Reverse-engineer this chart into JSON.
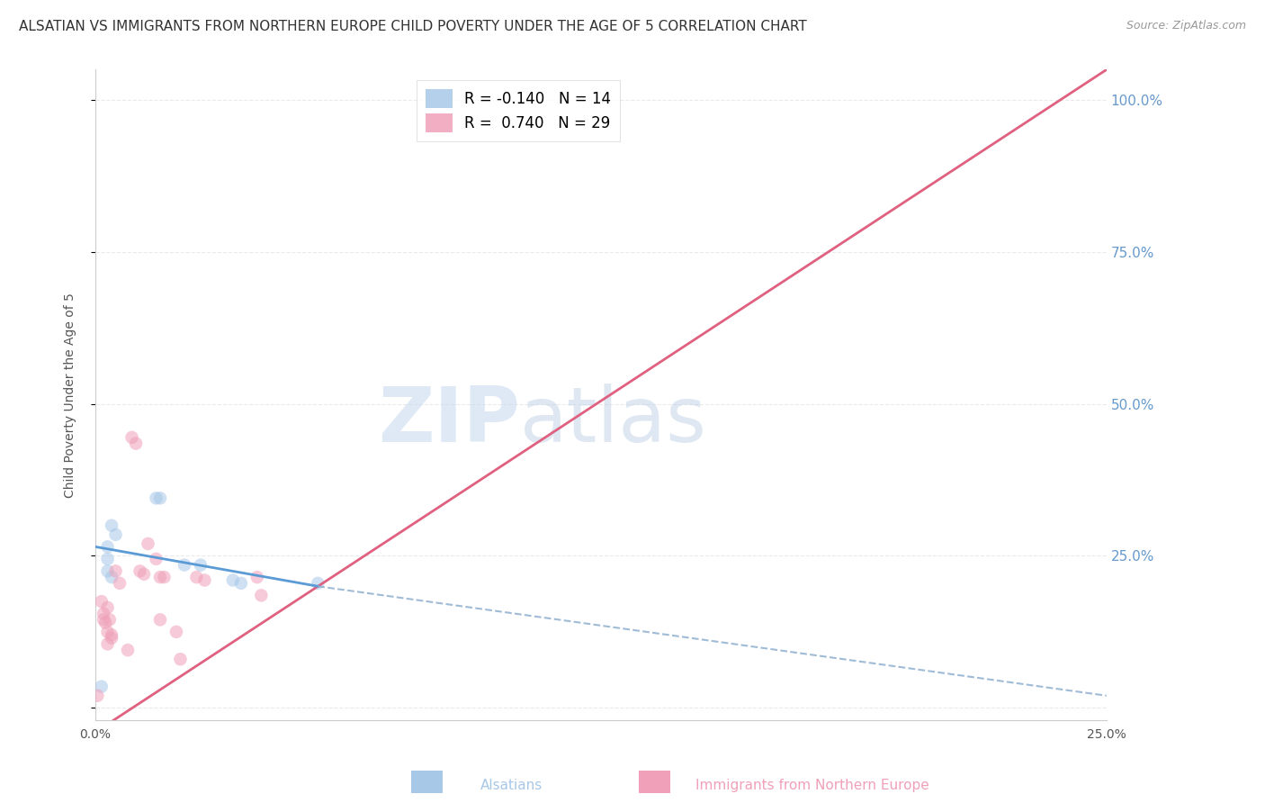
{
  "title": "ALSATIAN VS IMMIGRANTS FROM NORTHERN EUROPE CHILD POVERTY UNDER THE AGE OF 5 CORRELATION CHART",
  "source": "Source: ZipAtlas.com",
  "ylabel": "Child Poverty Under the Age of 5",
  "watermark_zip": "ZIP",
  "watermark_atlas": "atlas",
  "legend_label_1": "Alsatians",
  "legend_label_2": "Immigrants from Northern Europe",
  "R1": -0.14,
  "N1": 14,
  "R2": 0.74,
  "N2": 29,
  "xlim": [
    0.0,
    0.25
  ],
  "ylim": [
    -0.02,
    1.05
  ],
  "xticks": [
    0.0,
    0.05,
    0.1,
    0.15,
    0.2,
    0.25
  ],
  "xtick_labels": [
    "0.0%",
    "",
    "",
    "",
    "",
    "25.0%"
  ],
  "yticks": [
    0.0,
    0.25,
    0.5,
    0.75,
    1.0
  ],
  "ytick_labels_right": [
    "",
    "25.0%",
    "50.0%",
    "75.0%",
    "100.0%"
  ],
  "blue_color": "#A8C8E8",
  "pink_color": "#F0A0B8",
  "blue_line_color": "#5B9BD5",
  "pink_line_color": "#E06080",
  "dashed_line_color": "#88AACC",
  "blue_scatter": [
    [
      0.0015,
      0.035
    ],
    [
      0.003,
      0.265
    ],
    [
      0.003,
      0.245
    ],
    [
      0.003,
      0.225
    ],
    [
      0.004,
      0.215
    ],
    [
      0.004,
      0.3
    ],
    [
      0.005,
      0.285
    ],
    [
      0.015,
      0.345
    ],
    [
      0.016,
      0.345
    ],
    [
      0.022,
      0.235
    ],
    [
      0.026,
      0.235
    ],
    [
      0.034,
      0.21
    ],
    [
      0.036,
      0.205
    ],
    [
      0.055,
      0.205
    ]
  ],
  "pink_scatter": [
    [
      0.0005,
      0.02
    ],
    [
      0.0015,
      0.175
    ],
    [
      0.002,
      0.155
    ],
    [
      0.002,
      0.145
    ],
    [
      0.0025,
      0.14
    ],
    [
      0.003,
      0.125
    ],
    [
      0.003,
      0.105
    ],
    [
      0.003,
      0.165
    ],
    [
      0.0035,
      0.145
    ],
    [
      0.004,
      0.115
    ],
    [
      0.004,
      0.12
    ],
    [
      0.005,
      0.225
    ],
    [
      0.006,
      0.205
    ],
    [
      0.008,
      0.095
    ],
    [
      0.009,
      0.445
    ],
    [
      0.01,
      0.435
    ],
    [
      0.011,
      0.225
    ],
    [
      0.012,
      0.22
    ],
    [
      0.013,
      0.27
    ],
    [
      0.015,
      0.245
    ],
    [
      0.016,
      0.215
    ],
    [
      0.016,
      0.145
    ],
    [
      0.017,
      0.215
    ],
    [
      0.02,
      0.125
    ],
    [
      0.021,
      0.08
    ],
    [
      0.025,
      0.215
    ],
    [
      0.027,
      0.21
    ],
    [
      0.04,
      0.215
    ],
    [
      0.041,
      0.185
    ]
  ],
  "pink_line_x0": 0.0,
  "pink_line_y0": -0.04,
  "pink_line_x1": 0.25,
  "pink_line_y1": 1.05,
  "blue_line_x0": 0.0,
  "blue_line_y0": 0.265,
  "blue_line_x1": 0.055,
  "blue_line_y1": 0.2,
  "dashed_line_x0": 0.055,
  "dashed_line_y0": 0.2,
  "dashed_line_x1": 0.25,
  "dashed_line_y1": 0.02,
  "background_color": "#FFFFFF",
  "grid_color": "#E8E8E8",
  "title_color": "#333333",
  "axis_label_color": "#555555",
  "right_axis_color": "#6699CC",
  "marker_size": 110,
  "marker_alpha": 0.55,
  "title_fontsize": 11,
  "label_fontsize": 10,
  "tick_fontsize": 10
}
